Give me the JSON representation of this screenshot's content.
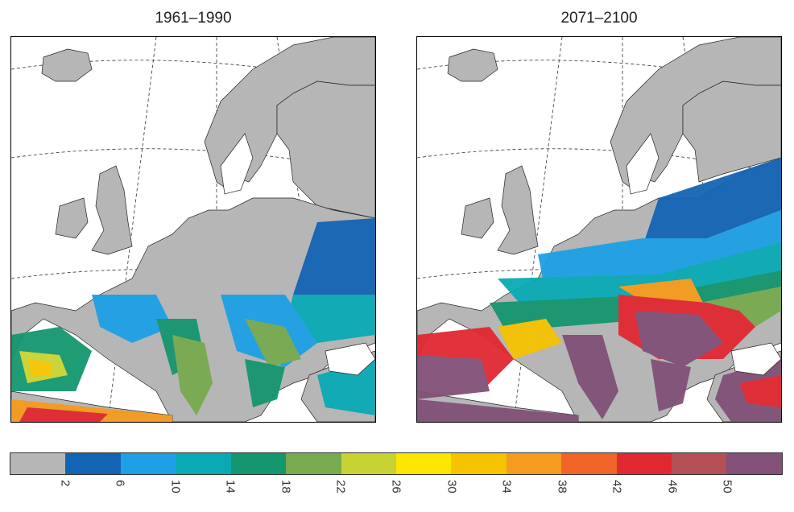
{
  "panels": [
    {
      "id": "left",
      "title": "1961–1990"
    },
    {
      "id": "right",
      "title": "2071–2100"
    }
  ],
  "colorbar": {
    "colors": [
      "#b6b6b6",
      "#1464b4",
      "#1ea0e6",
      "#0aaab4",
      "#14966e",
      "#78aa50",
      "#c8d232",
      "#fae600",
      "#f5c300",
      "#f59b1e",
      "#f06428",
      "#e12832",
      "#b45055",
      "#825078"
    ],
    "tick_labels": [
      "2",
      "6",
      "10",
      "14",
      "18",
      "22",
      "26",
      "30",
      "34",
      "38",
      "42",
      "46",
      "50"
    ]
  }
}
